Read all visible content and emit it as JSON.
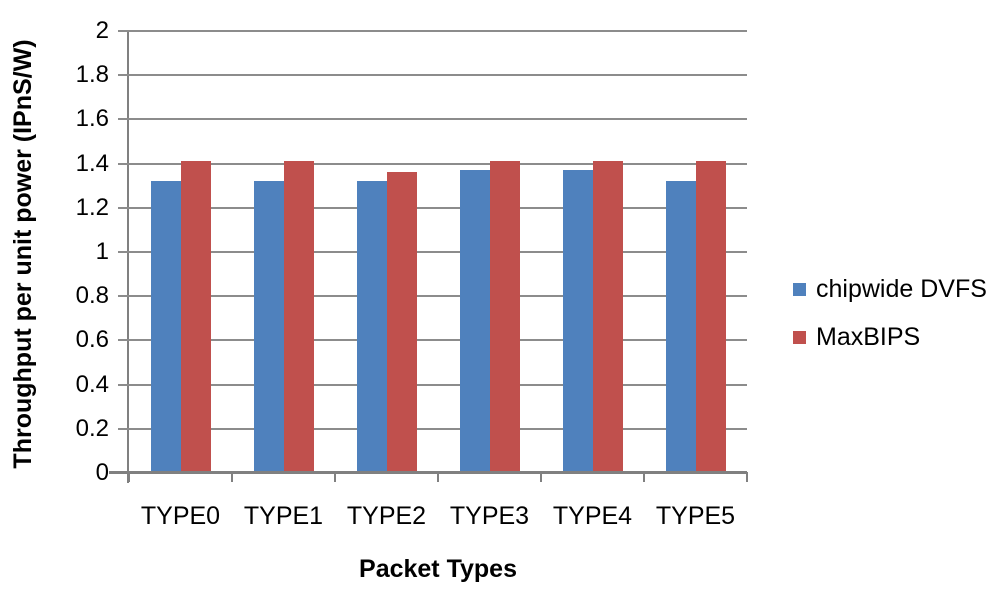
{
  "chart_data": {
    "type": "bar",
    "title": "",
    "xlabel": "Packet Types",
    "ylabel": "Throughput per unit power (IPnS/W)",
    "categories": [
      "TYPE0",
      "TYPE1",
      "TYPE2",
      "TYPE3",
      "TYPE4",
      "TYPE5"
    ],
    "series": [
      {
        "name": "chipwide DVFS",
        "color": "#4F81BD",
        "values": [
          1.32,
          1.32,
          1.32,
          1.37,
          1.37,
          1.32
        ]
      },
      {
        "name": "MaxBIPS",
        "color": "#C0504D",
        "values": [
          1.41,
          1.41,
          1.36,
          1.41,
          1.41,
          1.41
        ]
      }
    ],
    "ylim": [
      0,
      2
    ],
    "ytick_step": 0.2,
    "ytick_labels": [
      "0",
      "0.2",
      "0.4",
      "0.6",
      "0.8",
      "1",
      "1.2",
      "1.4",
      "1.6",
      "1.8",
      "2"
    ],
    "grid": true,
    "legend_position": "right",
    "colors": {
      "gridline": "#8C8C8C",
      "axis": "#808080",
      "text": "#000000",
      "background": "#FFFFFF"
    }
  }
}
